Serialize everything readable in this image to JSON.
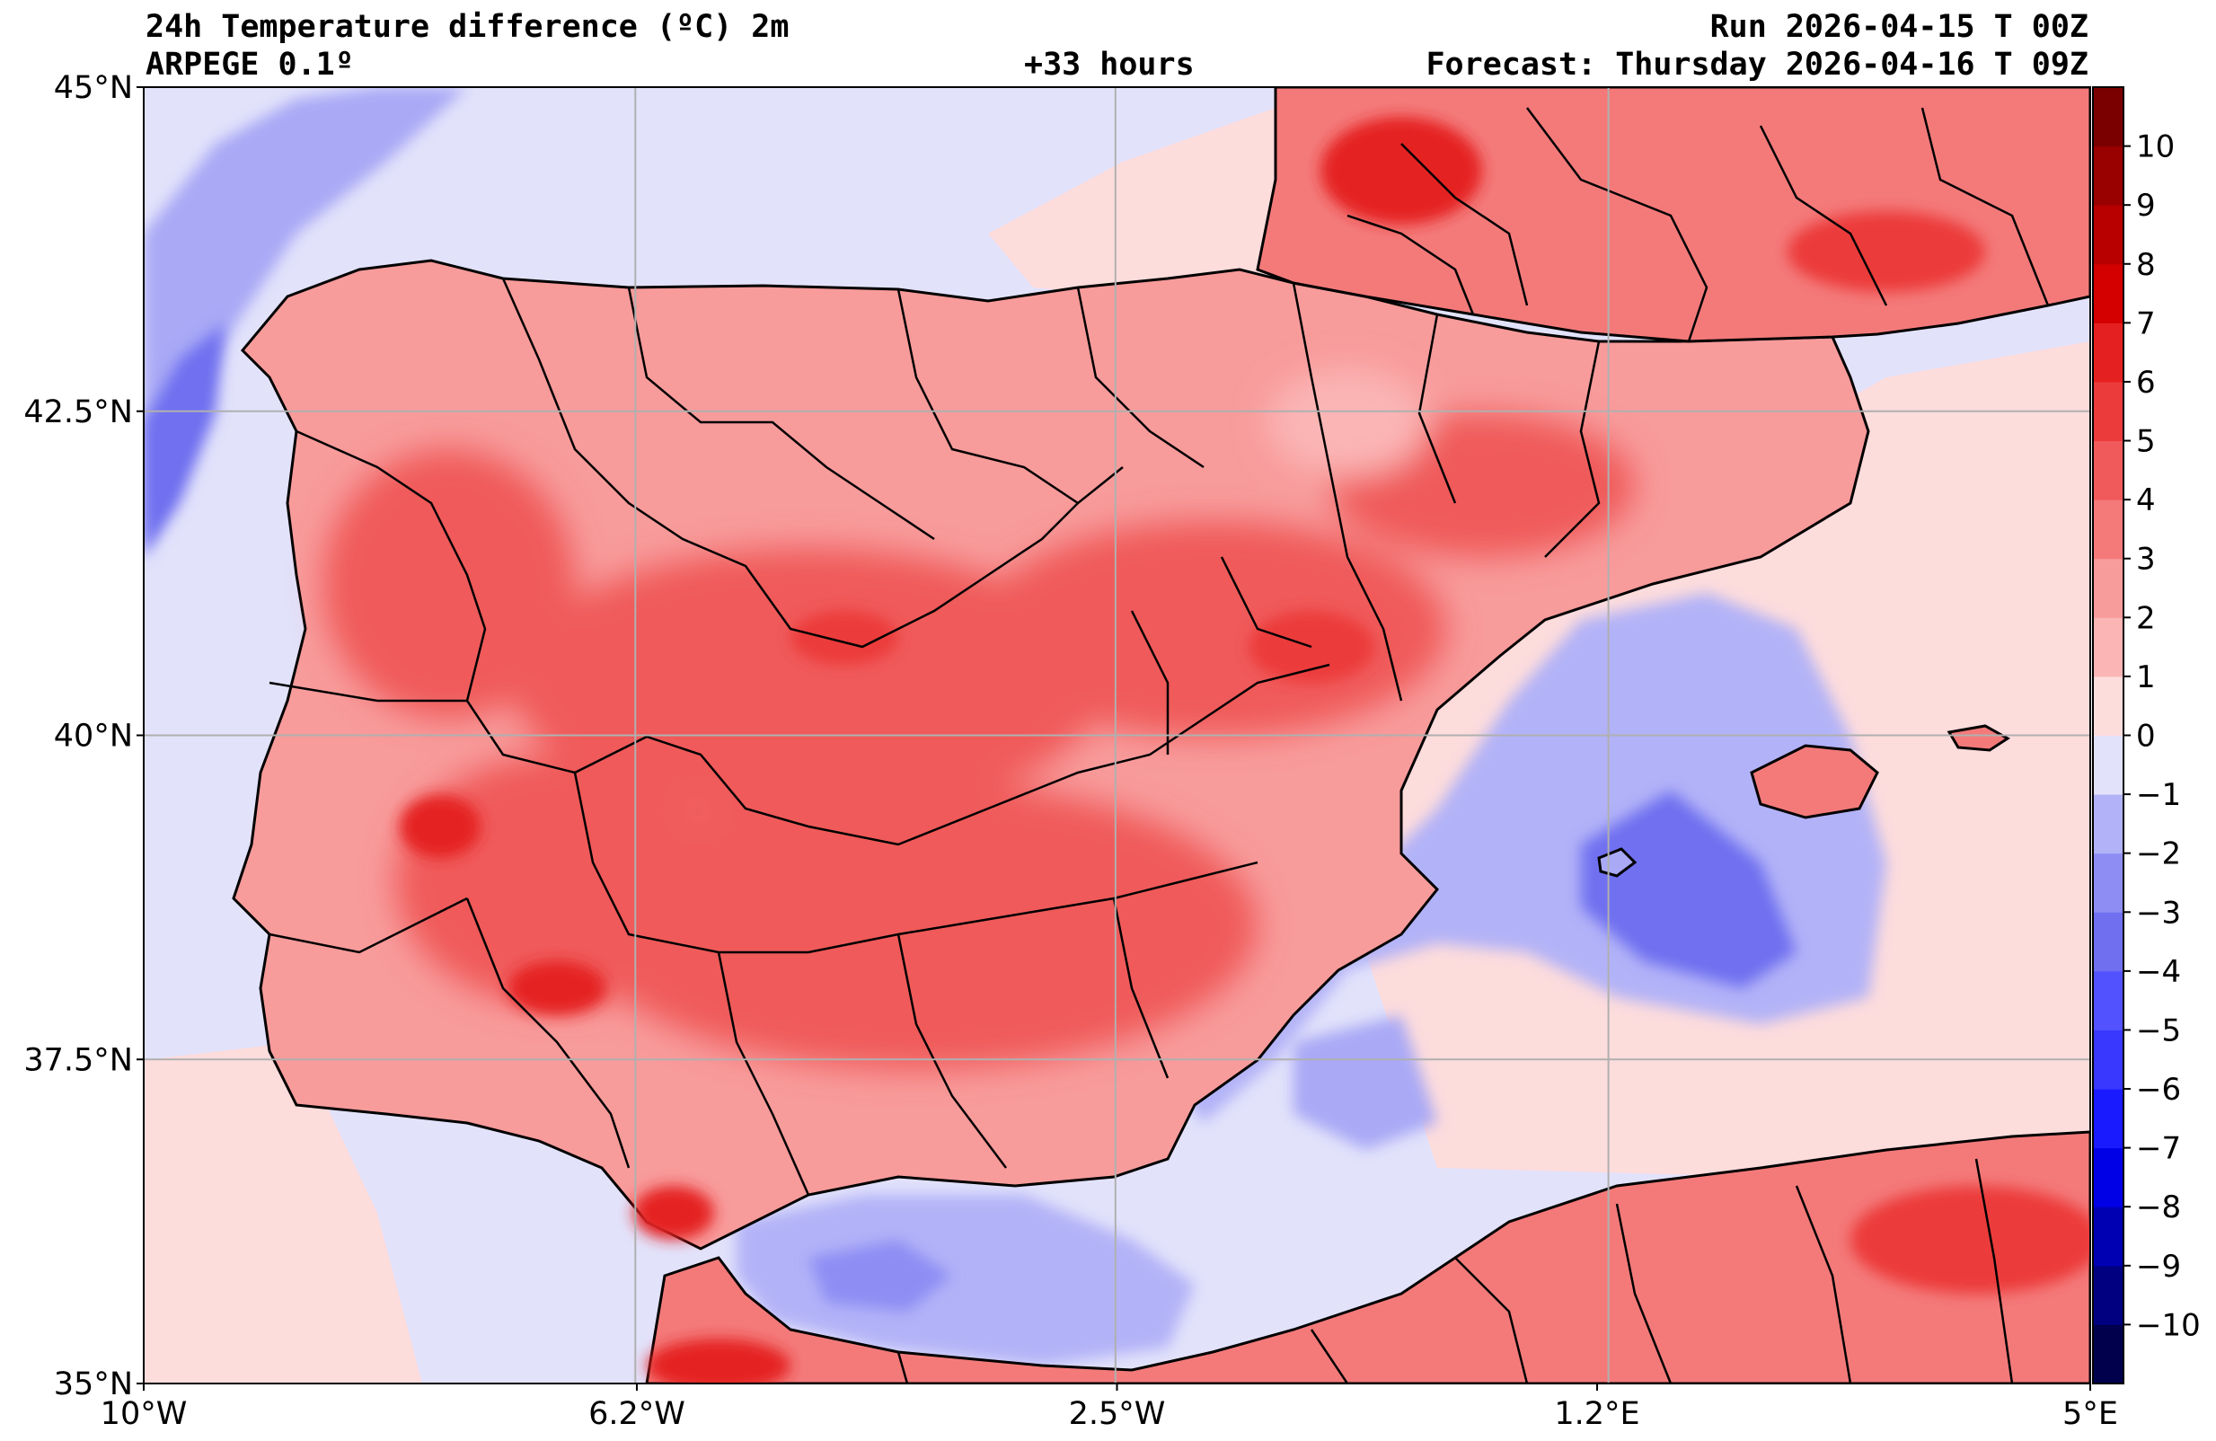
{
  "header": {
    "title_left": "24h Temperature difference (ºC) 2m",
    "subtitle_left": "ARPEGE 0.1º",
    "lead_time": "+33 hours",
    "run": "Run 2026-04-15 T 00Z",
    "forecast": "Forecast: Thursday 2026-04-16 T 09Z"
  },
  "map": {
    "region": "Iberian Peninsula",
    "lon_range": [
      -10,
      5
    ],
    "lat_range": [
      35,
      45
    ],
    "lat_ticks": [
      {
        "value": 45,
        "label": "45°N"
      },
      {
        "value": 42.5,
        "label": "42.5°N"
      },
      {
        "value": 40,
        "label": "40°N"
      },
      {
        "value": 37.5,
        "label": "37.5°N"
      },
      {
        "value": 35,
        "label": "35°N"
      }
    ],
    "lon_ticks": [
      {
        "value": -10,
        "label": "10°W"
      },
      {
        "value": -6.2,
        "label": "6.2°W"
      },
      {
        "value": -2.5,
        "label": "2.5°W"
      },
      {
        "value": 1.2,
        "label": "1.2°E"
      },
      {
        "value": 5,
        "label": "5°E"
      }
    ],
    "grid": true,
    "colors": {
      "land_warm_light": "#fddcdc",
      "land_warm_mid": "#f89b9b",
      "land_warm_strong": "#f05a5a",
      "land_warm_peak": "#e52020",
      "sea_cool_light": "#e2e2fb",
      "sea_cool_mid": "#a9a9f6",
      "sea_cool_strong": "#6f6ff0",
      "coast": "#000000",
      "grid": "#b0b0b0"
    }
  },
  "colorbar": {
    "levels": [
      -11,
      -10,
      -9,
      -8,
      -7,
      -6,
      -5,
      -4,
      -3,
      -2,
      -1,
      0,
      1,
      2,
      3,
      4,
      5,
      6,
      7,
      8,
      9,
      10,
      11
    ],
    "tick_values": [
      -10,
      -9,
      -8,
      -7,
      -6,
      -5,
      -4,
      -3,
      -2,
      -1,
      0,
      1,
      2,
      3,
      4,
      5,
      6,
      7,
      8,
      9,
      10
    ],
    "tick_labels": [
      "−10",
      "−9",
      "−8",
      "−7",
      "−6",
      "−5",
      "−4",
      "−3",
      "−2",
      "−1",
      "0",
      "1",
      "2",
      "3",
      "4",
      "5",
      "6",
      "7",
      "8",
      "9",
      "10"
    ],
    "colors": [
      "#00004d",
      "#000080",
      "#0000b3",
      "#0000e6",
      "#1a1aff",
      "#3838ff",
      "#5252ff",
      "#6f6ff0",
      "#8d8df4",
      "#b2b2f8",
      "#e2e2fb",
      "#fddcdc",
      "#fbb5b5",
      "#f89b9b",
      "#f47a7a",
      "#f05a5a",
      "#ec3b3b",
      "#e52020",
      "#d40000",
      "#b80000",
      "#990000",
      "#7a0000"
    ]
  }
}
